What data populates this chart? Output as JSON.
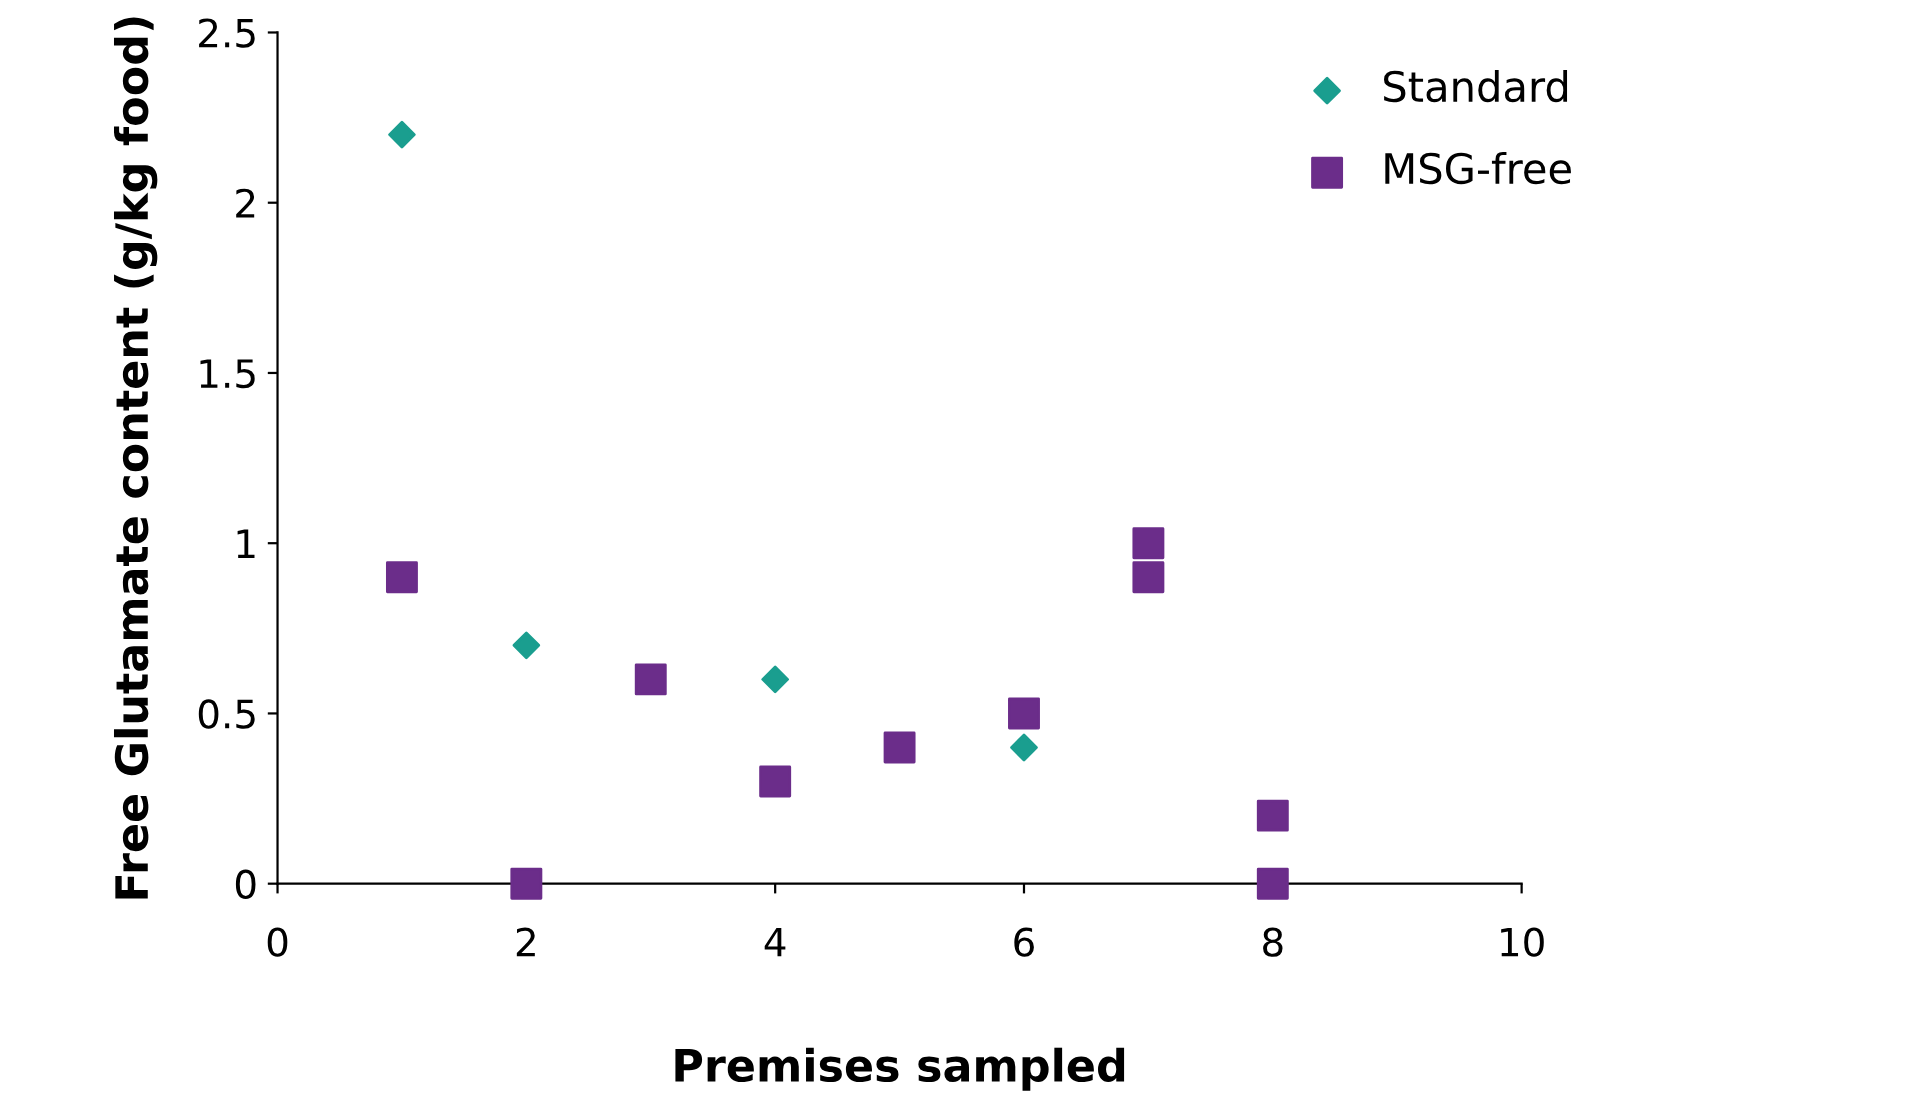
{
  "chart_data": {
    "type": "scatter",
    "xlabel": "Premises sampled",
    "ylabel": "Free Glutamate content (g/kg food)",
    "xlim": [
      0,
      10
    ],
    "xticks": [
      0,
      2,
      4,
      6,
      8,
      10
    ],
    "ylim": [
      0,
      2.5
    ],
    "yticks": [
      0,
      0.5,
      1,
      1.5,
      2,
      2.5
    ],
    "grid": false,
    "legend": "top right",
    "series": [
      {
        "name": "Standard",
        "color": "#1a9e8f",
        "marker": "diamond",
        "x": [
          1,
          2,
          4,
          6
        ],
        "values": [
          2.2,
          0.7,
          0.6,
          0.4
        ]
      },
      {
        "name": "MSG-free",
        "color": "#6b2d8a",
        "marker": "square",
        "x": [
          1,
          2,
          3,
          4,
          5,
          6,
          7,
          7,
          8,
          8
        ],
        "values": [
          0.9,
          0,
          0.6,
          0.3,
          0.4,
          0.5,
          1.0,
          0.9,
          0.2,
          0
        ]
      }
    ]
  }
}
